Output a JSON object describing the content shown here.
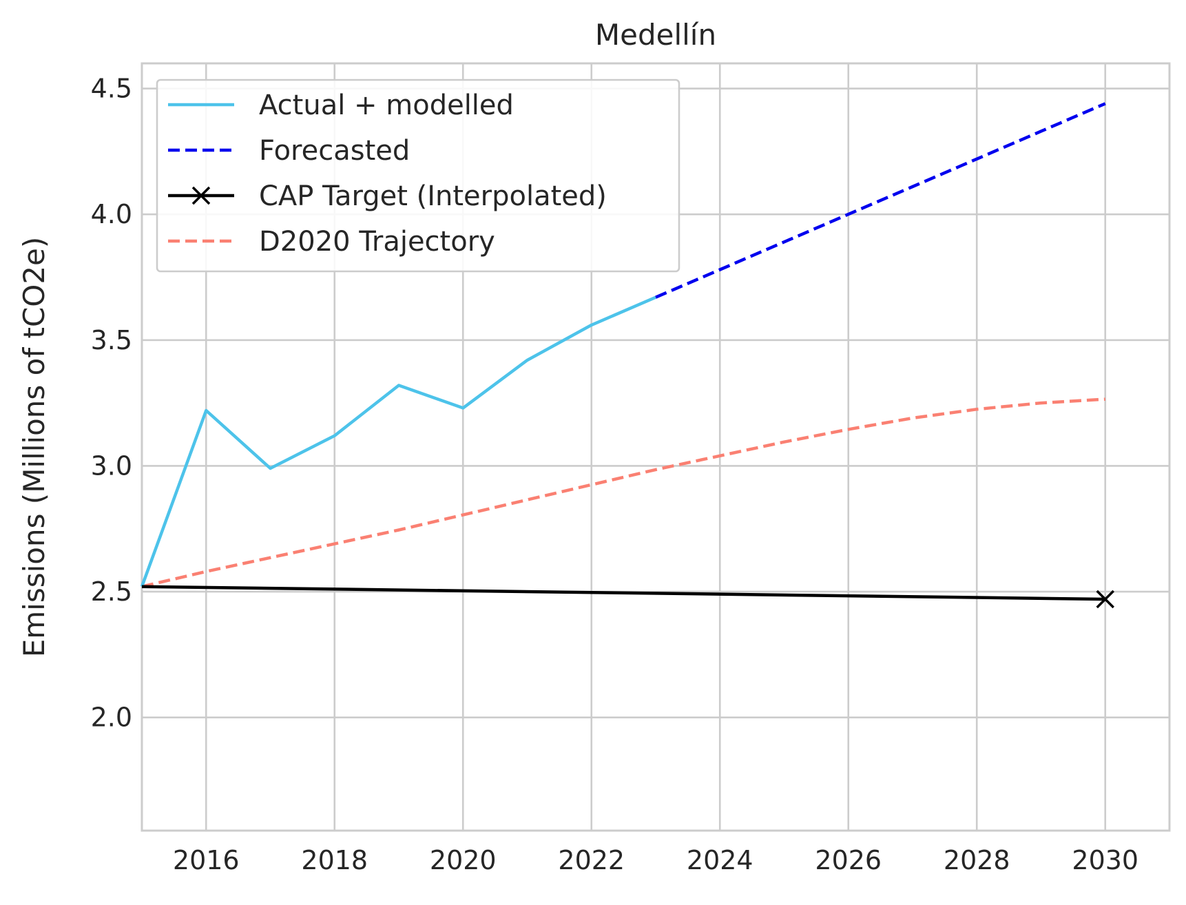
{
  "chart_data": {
    "type": "line",
    "title": "Medellín",
    "xlabel": "",
    "ylabel": "Emissions (Millions of tCO2e)",
    "xlim": [
      2015,
      2031
    ],
    "ylim": [
      1.55,
      4.6
    ],
    "x_ticks": [
      2016,
      2018,
      2020,
      2022,
      2024,
      2026,
      2028,
      2030
    ],
    "y_ticks": [
      2.0,
      2.5,
      3.0,
      3.5,
      4.0,
      4.5
    ],
    "x_tick_labels": [
      "2016",
      "2018",
      "2020",
      "2022",
      "2024",
      "2026",
      "2028",
      "2030"
    ],
    "y_tick_labels": [
      "2.0",
      "2.5",
      "3.0",
      "3.5",
      "4.0",
      "4.5"
    ],
    "grid": true,
    "legend_position": "top-left",
    "series": [
      {
        "name": "Actual + modelled",
        "color": "#4dc3ea",
        "style": "solid",
        "x": [
          2015,
          2016,
          2017,
          2018,
          2019,
          2020,
          2021,
          2022,
          2023
        ],
        "y": [
          2.52,
          3.22,
          2.99,
          3.12,
          3.32,
          3.23,
          3.42,
          3.56,
          3.67
        ]
      },
      {
        "name": "Forecasted",
        "color": "#0000ee",
        "style": "dashed",
        "x": [
          2023,
          2024,
          2025,
          2026,
          2027,
          2028,
          2029,
          2030
        ],
        "y": [
          3.67,
          3.78,
          3.89,
          4.0,
          4.11,
          4.22,
          4.33,
          4.44
        ]
      },
      {
        "name": "CAP Target (Interpolated)",
        "color": "#000000",
        "style": "solid",
        "marker": "x",
        "x": [
          2015,
          2030
        ],
        "y": [
          2.52,
          2.47
        ]
      },
      {
        "name": "D2020 Trajectory",
        "color": "#fa8072",
        "style": "dashed",
        "x": [
          2015,
          2016,
          2017,
          2018,
          2019,
          2020,
          2021,
          2022,
          2023,
          2024,
          2025,
          2026,
          2027,
          2028,
          2029,
          2030
        ],
        "y": [
          2.52,
          2.58,
          2.635,
          2.69,
          2.745,
          2.805,
          2.865,
          2.925,
          2.985,
          3.04,
          3.095,
          3.145,
          3.19,
          3.225,
          3.25,
          3.265
        ]
      }
    ]
  }
}
